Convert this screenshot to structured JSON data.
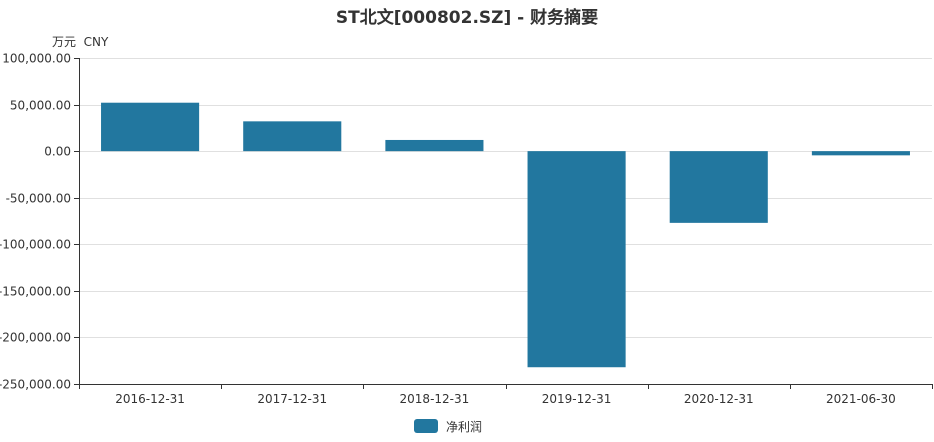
{
  "chart_data": {
    "type": "bar",
    "title": "ST北文[000802.SZ] - 财务摘要",
    "unit_label": "万元  CNY",
    "categories": [
      "2016-12-31",
      "2017-12-31",
      "2018-12-31",
      "2019-12-31",
      "2020-12-31",
      "2021-06-30"
    ],
    "series": [
      {
        "name": "净利润",
        "values": [
          52000,
          32000,
          12000,
          -232000,
          -77000,
          -4500
        ]
      }
    ],
    "ylim": [
      -250000,
      100000
    ],
    "yticks": [
      100000,
      50000,
      0,
      -50000,
      -100000,
      -150000,
      -200000,
      -250000
    ],
    "ytick_labels": [
      "100,000.00",
      "50,000.00",
      "0.00",
      "-50,000.00",
      "-100,000.00",
      "-150,000.00",
      "-200,000.00",
      "-250,000.00"
    ],
    "grid": true,
    "legend_position": "bottom",
    "colors": {
      "bar": "#22779f",
      "grid": "#e0e0e0",
      "axis": "#333333",
      "text": "#333333"
    }
  }
}
